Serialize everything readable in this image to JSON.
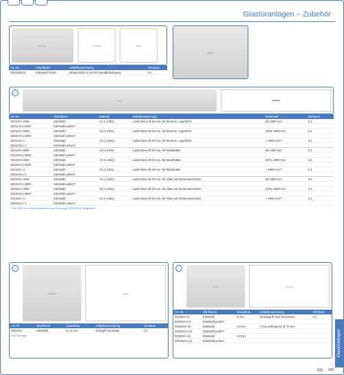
{
  "page_title": "Glastüranlagen – Zubehör",
  "side_tab_label": "Glastüranlagen",
  "page_number": "159",
  "logo_text": "PS",
  "footnote_ab2601": "** Ab 2601 mm wird mindestens eine Kupplung 32010SVA mitgeliefert.",
  "footnote_auf_anfrage": "*Auf Anfrage",
  "colors": {
    "brand": "#4a7bc0",
    "white": "#ffffff",
    "text": "#333333"
  },
  "section1": {
    "headers": [
      "Art.-Nr.",
      "Oberfläche",
      "Artikelbezeichnung",
      "VE/Stück"
    ],
    "rows": [
      [
        "32019ZN22",
        "Edelstahl Finish",
        "Distanzstück 5 mm für Wandbefestigung",
        "1/1"
      ]
    ]
  },
  "section2": {
    "dims_label_variabel": "variabel",
    "headers": [
      "Art.-Nr.",
      "Oberfläche",
      "Material",
      "Artikelbezeichnung",
      "Merkmale",
      "VE/Stück"
    ],
    "groups": [
      [
        [
          "32012VA-2000",
          "Edelstahl",
          "A2 (1.4301)",
          "Laufschiene Ø 25 mm, für Klemme, ungebohrt",
          "bis 2000 mm",
          "1/1"
        ],
        [
          "32012VA1-2000",
          "Edelstahl poliert*",
          "",
          "",
          "",
          ""
        ],
        [
          "32012VA-2600",
          "Edelstahl",
          "A2 (1.4301)",
          "Laufschiene Ø 25 mm, für Klemme, ungebohrt",
          "2001–2600 mm",
          "1/1"
        ],
        [
          "32012VA1-2600",
          "Edelstahl poliert*",
          "",
          "",
          "",
          ""
        ],
        [
          "32012VA-V",
          "Edelstahl",
          "A2 (1.4301)",
          "Laufschiene Ø 25 mm, für Klemme, ungebohrt",
          "> 2600 mm**",
          "1/1"
        ],
        [
          "32012VA1-V",
          "Edelstahl poliert*",
          "",
          "",
          "",
          ""
        ]
      ],
      [
        [
          "32014VA-2000",
          "Edelstahl",
          "A2 (1.4301)",
          "Laufschiene Ø 25 mm, für Wandhalter",
          "bis 2000 mm",
          "1/1"
        ],
        [
          "32014VA1-2000",
          "Edelstahl poliert*",
          "",
          "",
          "",
          ""
        ],
        [
          "32014VA-2600",
          "Edelstahl",
          "A2 (1.4301)",
          "Laufschiene Ø 25 mm, für Wandhalter",
          "2001–2600 mm",
          "1/1"
        ],
        [
          "32014VA1-2600",
          "Edelstahl poliert*",
          "",
          "",
          "",
          ""
        ],
        [
          "32014VA-V",
          "Edelstahl",
          "A2 (1.4301)",
          "Laufschiene Ø 25 mm, für Wandhalter",
          "> 2600 mm**",
          "1/1"
        ],
        [
          "32014VA1-V",
          "Edelstahl poliert*",
          "",
          "",
          "",
          ""
        ]
      ],
      [
        [
          "32016VA-2000",
          "Edelstahl",
          "A2 (1.4301)",
          "Laufschiene Ø 25 mm, für Glas und Deckenanschluss",
          "bis 2000 mm",
          "1/1"
        ],
        [
          "32016VA1-2000",
          "Edelstahl poliert*",
          "",
          "",
          "",
          ""
        ],
        [
          "32016VA-2600",
          "Edelstahl",
          "A2 (1.4301)",
          "Laufschiene Ø 25 mm, für Glas und Deckenanschluss",
          "2001–2600 mm",
          "1/1"
        ],
        [
          "32016VA1-2600",
          "Edelstahl poliert*",
          "",
          "",
          "",
          ""
        ],
        [
          "32016VA-V",
          "Edelstahl",
          "A2 (1.4301)",
          "Laufschiene Ø 25 mm, für Glas und Deckenanschluss",
          "> 2600 mm**",
          "1/1"
        ],
        [
          "32016VA1-V",
          "Edelstahl poliert*",
          "",
          "",
          "",
          ""
        ]
      ]
    ]
  },
  "section3": {
    "headers": [
      "Art.-Nr.",
      "Oberfläche",
      "Glasstärke",
      "Artikelbezeichnung",
      "VE/Stück"
    ],
    "rows": [
      [
        "32024VA",
        "Edelstahl",
        "8–12 mm",
        "Stoßgriff beidseitig",
        "1/1"
      ]
    ]
  },
  "section4": {
    "headers": [
      "Art.-Nr.",
      "Oberfläche",
      "Glasstärke",
      "Artikelbezeichnung",
      "VE/Stück"
    ],
    "rows": [
      [
        "32028VA-8",
        "Edelstahl",
        "8 mm",
        "Einlassgriff zum Schrauben",
        "1/1"
      ],
      [
        "32028VA1-8",
        "Edelstahl poliert*",
        "",
        "",
        ""
      ],
      [
        "32028VA-10",
        "Edelstahl",
        "10 mm",
        "7 mm auftragend, Ø 70 mm",
        ""
      ],
      [
        "32028VA1-10",
        "Edelstahl poliert*",
        "",
        "",
        ""
      ],
      [
        "32028VA-12",
        "Edelstahl",
        "12 mm",
        "",
        ""
      ],
      [
        "32028VA1-12",
        "Edelstahl poliert*",
        "",
        "",
        ""
      ]
    ]
  }
}
